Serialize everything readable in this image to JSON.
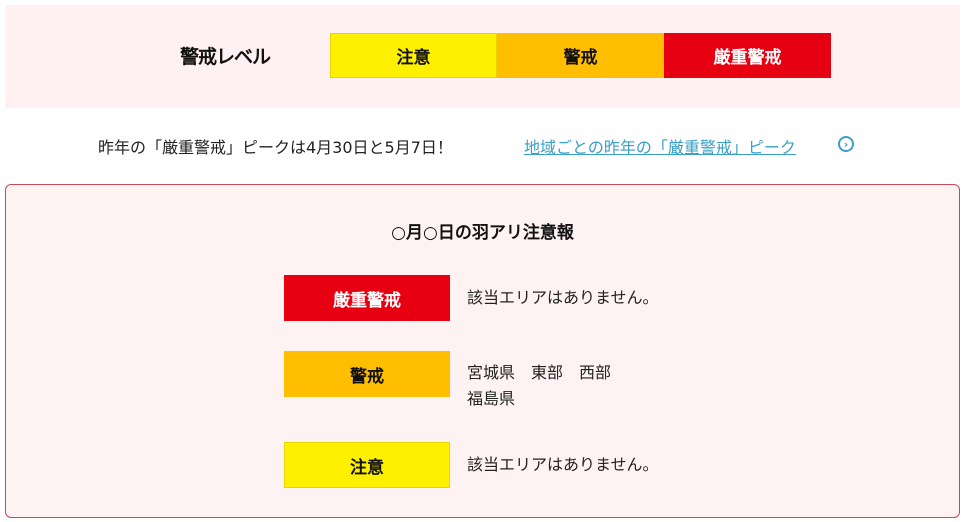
{
  "legend": {
    "label": "警戒レベル",
    "levels": [
      {
        "label": "注意",
        "color": "#ffef00"
      },
      {
        "label": "警戒",
        "color": "#ffbf00"
      },
      {
        "label": "厳重警戒",
        "color": "#e60012"
      }
    ]
  },
  "peak": {
    "text": "昨年の「厳重警戒」ピークは4月30日と5月7日！",
    "link": "地域ごとの昨年の「厳重警戒」ピーク",
    "link_icon": "chevron-right-circle-icon"
  },
  "report": {
    "title": "○月○日の羽アリ注意報",
    "rows": [
      {
        "level": "厳重警戒",
        "areas": [
          "該当エリアはありません。"
        ]
      },
      {
        "level": "警戒",
        "areas": [
          "宮城県　東部　西部",
          "福島県"
        ]
      },
      {
        "level": "注意",
        "areas": [
          "該当エリアはありません。"
        ]
      }
    ]
  }
}
